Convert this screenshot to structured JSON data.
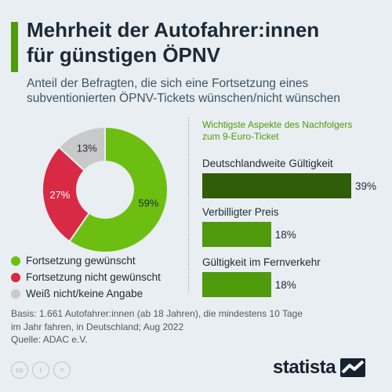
{
  "header": {
    "title_line1": "Mehrheit der Autofahrer:innen",
    "title_line2": "für günstigen ÖPNV",
    "subtitle_line1": "Anteil der Befragten, die sich eine Fortsetzung eines",
    "subtitle_line2": "subventionierten ÖPNV-Tickets wünschen/nicht wünschen"
  },
  "chart_data": [
    {
      "type": "pie",
      "donut": true,
      "categories": [
        "Fortsetzung gewünscht",
        "Fortsetzung nicht gewünscht",
        "Weiß nicht/keine Angabe"
      ],
      "values": [
        59,
        27,
        13
      ],
      "value_labels": [
        "59%",
        "27%",
        "13%"
      ],
      "colors": [
        "#6cbf10",
        "#d82a45",
        "#c9c9c9"
      ],
      "legend": "bottom-left"
    },
    {
      "type": "bar",
      "orientation": "horizontal",
      "title_line1": "Wichtigste Aspekte des Nachfolgers",
      "title_line2": "zum 9-Euro-Ticket",
      "categories": [
        "Deutschlandweite Gültigkeit",
        "Verbilligter Preis",
        "Gültigkeit im Fernverkehr"
      ],
      "values": [
        39,
        18,
        18
      ],
      "value_labels": [
        "39%",
        "18%",
        "18%"
      ],
      "colors": [
        "#2f5d0a",
        "#4f9a0d",
        "#4f9a0d"
      ],
      "unit": "%"
    }
  ],
  "footer": {
    "source_line1": "Basis: 1.661 Autofahrer:innen (ab 18 Jahren), die mindestens 10 Tage",
    "source_line2": "im Jahr fahren, in Deutschland; Aug 2022",
    "source_line3": "Quelle: ADAC e.V.",
    "license_icons": [
      "cc-icon",
      "person-icon",
      "equals-icon"
    ],
    "license_glyphs": [
      "cc",
      "i",
      "="
    ],
    "logo_text": "statista"
  }
}
